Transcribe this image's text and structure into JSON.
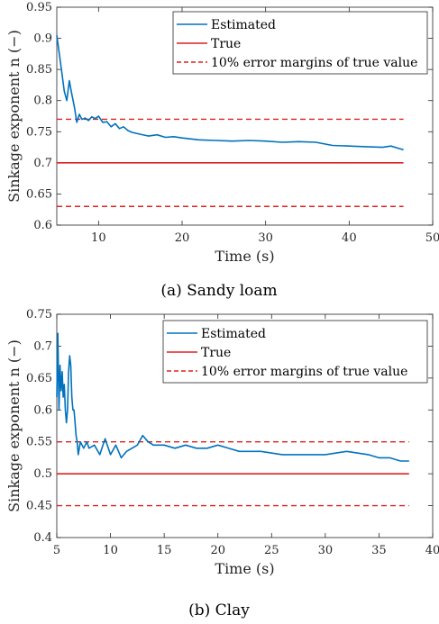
{
  "chart_data": [
    {
      "type": "line",
      "caption": "(a) Sandy loam",
      "xlabel": "Time (s)",
      "ylabel": "Sinkage exponent n (−)",
      "xlim": [
        5,
        50
      ],
      "ylim": [
        0.6,
        0.95
      ],
      "xticks": [
        "10",
        "20",
        "30",
        "40",
        "50"
      ],
      "yticks": [
        "0.6",
        "0.65",
        "0.7",
        "0.75",
        "0.8",
        "0.85",
        "0.9",
        "0.95"
      ],
      "legend_position": "top-right",
      "colors": {
        "estimated": "#0072BD",
        "true": "#E02020"
      },
      "series": [
        {
          "name": "Estimated",
          "style": "solid",
          "x": [
            5,
            5.3,
            5.6,
            5.9,
            6.2,
            6.5,
            6.8,
            7.1,
            7.4,
            7.7,
            8,
            8.4,
            8.8,
            9.2,
            9.6,
            10,
            10.5,
            11,
            11.5,
            12,
            12.5,
            13,
            13.5,
            14,
            15,
            16,
            17,
            18,
            19,
            20,
            22,
            24,
            26,
            28,
            30,
            32,
            34,
            36,
            38,
            40,
            42,
            44,
            45,
            46,
            46.5
          ],
          "y": [
            0.905,
            0.875,
            0.845,
            0.815,
            0.8,
            0.832,
            0.81,
            0.79,
            0.765,
            0.778,
            0.77,
            0.772,
            0.768,
            0.774,
            0.771,
            0.775,
            0.765,
            0.766,
            0.758,
            0.763,
            0.755,
            0.758,
            0.752,
            0.749,
            0.746,
            0.743,
            0.745,
            0.741,
            0.742,
            0.74,
            0.737,
            0.736,
            0.735,
            0.736,
            0.735,
            0.733,
            0.734,
            0.733,
            0.728,
            0.727,
            0.726,
            0.725,
            0.727,
            0.723,
            0.721
          ]
        },
        {
          "name": "True",
          "style": "solid",
          "x": [
            5,
            46.5
          ],
          "y": [
            0.7,
            0.7
          ]
        },
        {
          "name": "10% error margins of true value",
          "style": "dashed",
          "x": [
            5,
            46.5
          ],
          "y": [
            0.77,
            0.77
          ],
          "y2": [
            0.63,
            0.63
          ]
        }
      ]
    },
    {
      "type": "line",
      "caption": "(b) Clay",
      "xlabel": "Time (s)",
      "ylabel": "Sinkage exponent n (−)",
      "xlim": [
        5,
        40
      ],
      "ylim": [
        0.4,
        0.75
      ],
      "xticks": [
        "5",
        "10",
        "15",
        "20",
        "25",
        "30",
        "35",
        "40"
      ],
      "yticks": [
        "0.4",
        "0.45",
        "0.5",
        "0.55",
        "0.6",
        "0.65",
        "0.7",
        "0.75"
      ],
      "legend_position": "top-right",
      "colors": {
        "estimated": "#0072BD",
        "true": "#E02020"
      },
      "series": [
        {
          "name": "Estimated",
          "style": "solid",
          "x": [
            5,
            5.1,
            5.2,
            5.3,
            5.4,
            5.5,
            5.6,
            5.7,
            5.8,
            5.9,
            6,
            6.1,
            6.2,
            6.3,
            6.4,
            6.5,
            6.6,
            6.7,
            6.8,
            6.9,
            7,
            7.2,
            7.5,
            7.8,
            8,
            8.5,
            9,
            9.5,
            10,
            10.5,
            11,
            11.5,
            12,
            12.5,
            13,
            13.5,
            14,
            15,
            16,
            17,
            18,
            19,
            20,
            22,
            24,
            26,
            28,
            30,
            32,
            34,
            35,
            36,
            37,
            37.8
          ],
          "y": [
            0.62,
            0.72,
            0.6,
            0.67,
            0.63,
            0.66,
            0.62,
            0.64,
            0.6,
            0.58,
            0.6,
            0.66,
            0.685,
            0.67,
            0.62,
            0.6,
            0.6,
            0.58,
            0.56,
            0.55,
            0.53,
            0.55,
            0.54,
            0.55,
            0.54,
            0.545,
            0.53,
            0.555,
            0.53,
            0.545,
            0.525,
            0.535,
            0.54,
            0.545,
            0.56,
            0.55,
            0.545,
            0.545,
            0.54,
            0.545,
            0.54,
            0.54,
            0.545,
            0.535,
            0.535,
            0.53,
            0.53,
            0.53,
            0.535,
            0.53,
            0.525,
            0.525,
            0.52,
            0.52
          ]
        },
        {
          "name": "True",
          "style": "solid",
          "x": [
            5,
            37.8
          ],
          "y": [
            0.5,
            0.5
          ]
        },
        {
          "name": "10% error margins of true value",
          "style": "dashed",
          "x": [
            5,
            37.8
          ],
          "y": [
            0.55,
            0.55
          ],
          "y2": [
            0.45,
            0.45
          ]
        }
      ]
    }
  ]
}
